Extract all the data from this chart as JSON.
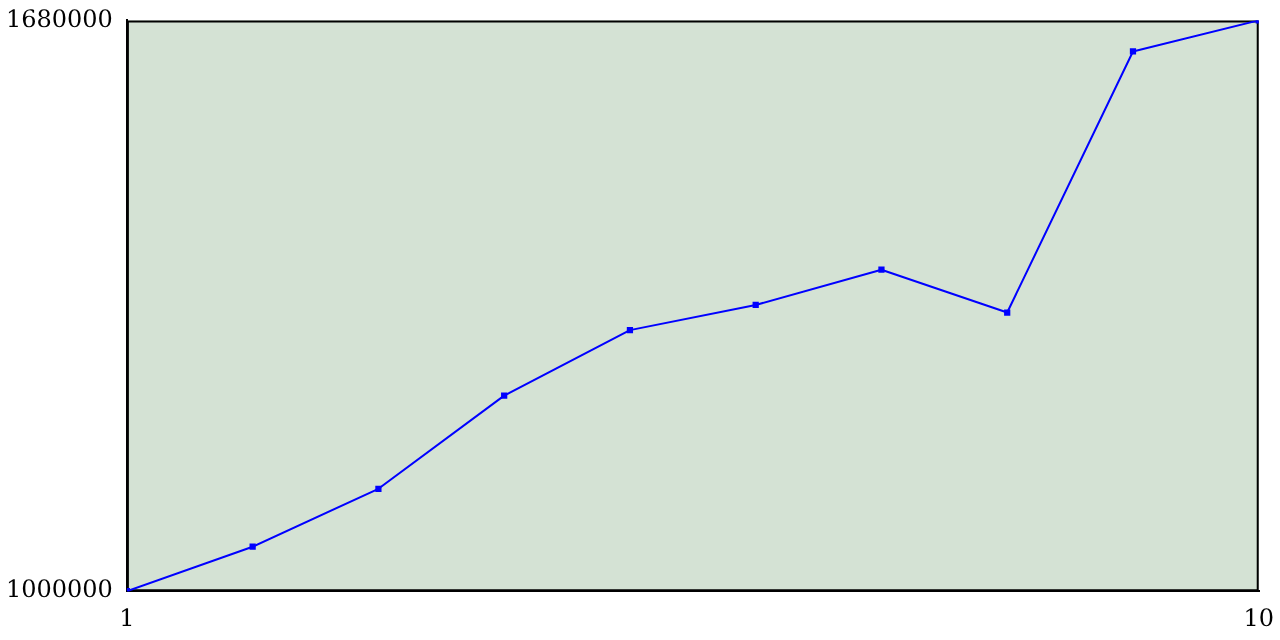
{
  "chart_data": {
    "type": "line",
    "x": [
      1,
      2,
      3,
      4,
      5,
      6,
      7,
      8,
      9,
      10
    ],
    "series": [
      {
        "color": "#0000ff",
        "values": [
          1000000,
          1053000,
          1122000,
          1233000,
          1311000,
          1341000,
          1383000,
          1332000,
          1643000,
          1680000
        ]
      }
    ],
    "xlim": [
      1,
      10
    ],
    "xticks": [
      1,
      10
    ],
    "ylim": [
      1000000,
      1680000
    ],
    "yticks": [
      1000000,
      1680000
    ],
    "grid": false,
    "legend": false,
    "marker": "square",
    "line_style": "solid"
  }
}
